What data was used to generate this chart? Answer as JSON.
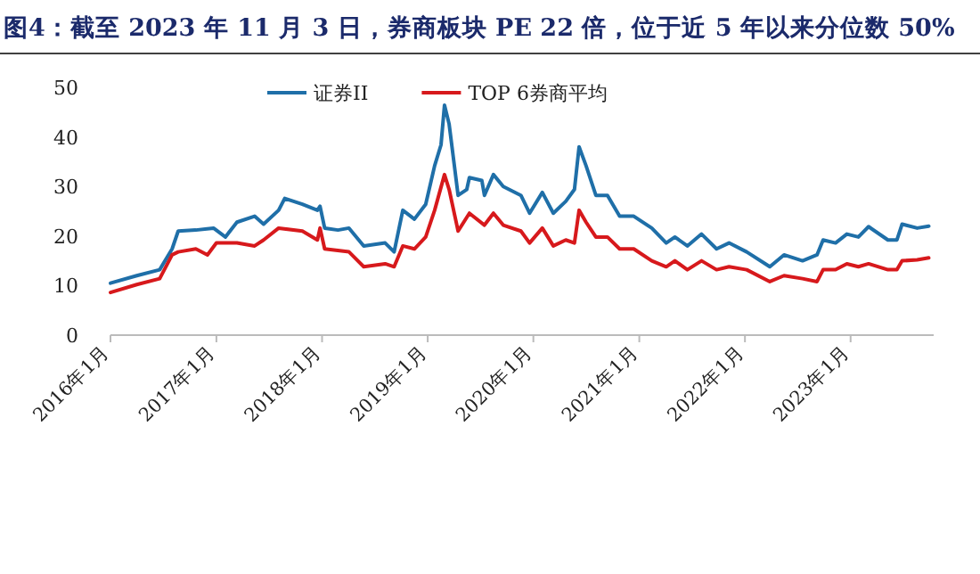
{
  "chart_data": {
    "type": "line",
    "title": "图4：截至 2023 年 11 月 3 日，券商板块 PE 22 倍，位于近 5 年以来分位数 50%",
    "xlim": [
      "2016-01-01",
      "2023-10-15"
    ],
    "ylim": [
      0,
      50
    ],
    "yticks": [
      0,
      10,
      20,
      30,
      40,
      50
    ],
    "xticks": [
      {
        "value": "2016-01-01",
        "label": "2016年1月"
      },
      {
        "value": "2017-01-01",
        "label": "2017年1月"
      },
      {
        "value": "2018-01-01",
        "label": "2018年1月"
      },
      {
        "value": "2019-01-01",
        "label": "2019年1月"
      },
      {
        "value": "2020-01-01",
        "label": "2020年1月"
      },
      {
        "value": "2021-01-01",
        "label": "2021年1月"
      },
      {
        "value": "2022-01-01",
        "label": "2022年1月"
      },
      {
        "value": "2023-01-01",
        "label": "2023年1月"
      }
    ],
    "legend": "top",
    "series": [
      {
        "name": "证券II",
        "color": "#1f6fa8",
        "x": [
          "2016-01-01",
          "2016-04-01",
          "2016-06-19",
          "2016-08-01",
          "2016-08-22",
          "2016-10-22",
          "2016-12-22",
          "2017-02-01",
          "2017-03-13",
          "2017-05-13",
          "2017-06-13",
          "2017-08-04",
          "2017-08-25",
          "2017-10-25",
          "2017-12-16",
          "2017-12-25",
          "2018-01-10",
          "2018-02-25",
          "2018-04-04",
          "2018-05-25",
          "2018-08-07",
          "2018-09-07",
          "2018-10-07",
          "2018-11-16",
          "2018-12-25",
          "2019-01-25",
          "2019-02-16",
          "2019-02-28",
          "2019-03-16",
          "2019-04-16",
          "2019-05-16",
          "2019-05-25",
          "2019-07-07",
          "2019-07-16",
          "2019-08-16",
          "2019-09-19",
          "2019-11-19",
          "2019-12-19",
          "2020-02-01",
          "2020-03-10",
          "2020-04-22",
          "2020-05-22",
          "2020-06-07",
          "2020-07-01",
          "2020-08-04",
          "2020-09-13",
          "2020-10-25",
          "2020-12-13",
          "2021-02-13",
          "2021-04-04",
          "2021-05-04",
          "2021-06-16",
          "2021-08-04",
          "2021-09-25",
          "2021-11-07",
          "2022-01-07",
          "2022-03-28",
          "2022-05-16",
          "2022-07-19",
          "2022-09-07",
          "2022-09-28",
          "2022-11-10",
          "2022-12-19",
          "2023-01-28",
          "2023-03-04",
          "2023-05-10",
          "2023-06-10",
          "2023-06-28",
          "2023-08-19",
          "2023-09-28"
        ],
        "values": [
          10.5,
          12,
          13.2,
          17.4,
          21,
          21.2,
          21.6,
          19.8,
          22.8,
          24,
          22.4,
          25.2,
          27.6,
          26.4,
          25.2,
          26,
          21.6,
          21.2,
          21.6,
          18,
          18.6,
          16.8,
          25.2,
          23.4,
          26.4,
          34.2,
          38.4,
          46.4,
          42.6,
          28.2,
          29.4,
          31.8,
          31.2,
          28.2,
          32.4,
          30,
          28.2,
          24.6,
          28.8,
          24.6,
          27,
          29.4,
          38,
          34.2,
          28.2,
          28.2,
          24,
          24,
          21.6,
          18.6,
          19.8,
          18,
          20.4,
          17.4,
          18.6,
          16.8,
          13.8,
          16.2,
          15,
          16.2,
          19.2,
          18.6,
          20.4,
          19.8,
          21.9,
          19.2,
          19.2,
          22.4,
          21.6,
          22
        ]
      },
      {
        "name": "TOP 6券商平均",
        "color": "#d7191c",
        "x": [
          "2016-01-01",
          "2016-04-01",
          "2016-06-19",
          "2016-08-01",
          "2016-08-22",
          "2016-10-22",
          "2016-12-01",
          "2017-01-01",
          "2017-03-13",
          "2017-05-13",
          "2017-06-13",
          "2017-08-04",
          "2017-10-25",
          "2017-12-16",
          "2017-12-25",
          "2018-01-10",
          "2018-04-04",
          "2018-05-25",
          "2018-08-07",
          "2018-09-07",
          "2018-10-07",
          "2018-11-16",
          "2018-12-25",
          "2019-01-25",
          "2019-02-28",
          "2019-03-16",
          "2019-04-16",
          "2019-05-25",
          "2019-07-16",
          "2019-08-16",
          "2019-09-19",
          "2019-11-19",
          "2019-12-19",
          "2020-02-01",
          "2020-03-10",
          "2020-04-22",
          "2020-05-22",
          "2020-06-07",
          "2020-07-01",
          "2020-08-04",
          "2020-09-13",
          "2020-10-25",
          "2020-12-13",
          "2021-02-13",
          "2021-04-04",
          "2021-05-04",
          "2021-06-16",
          "2021-08-04",
          "2021-09-25",
          "2021-11-07",
          "2022-01-07",
          "2022-03-28",
          "2022-05-16",
          "2022-07-19",
          "2022-09-07",
          "2022-09-28",
          "2022-11-10",
          "2022-12-19",
          "2023-01-28",
          "2023-03-04",
          "2023-05-10",
          "2023-06-10",
          "2023-06-28",
          "2023-08-19",
          "2023-09-28"
        ],
        "values": [
          8.6,
          10.2,
          11.4,
          16.2,
          16.8,
          17.4,
          16.2,
          18.6,
          18.6,
          18,
          19.2,
          21.6,
          21,
          19.2,
          21.6,
          17.4,
          16.8,
          13.8,
          14.4,
          13.8,
          18,
          17.4,
          19.8,
          25.2,
          32.4,
          29.4,
          21,
          24.6,
          22.2,
          24.6,
          22.2,
          21,
          18.6,
          21.6,
          18,
          19.2,
          18.6,
          25.2,
          22.8,
          19.8,
          19.8,
          17.4,
          17.4,
          15,
          13.8,
          15,
          13.2,
          15,
          13.2,
          13.8,
          13.2,
          10.8,
          12,
          11.4,
          10.8,
          13.2,
          13.2,
          14.4,
          13.8,
          14.4,
          13.2,
          13.2,
          15,
          15.2,
          15.6
        ]
      }
    ]
  }
}
